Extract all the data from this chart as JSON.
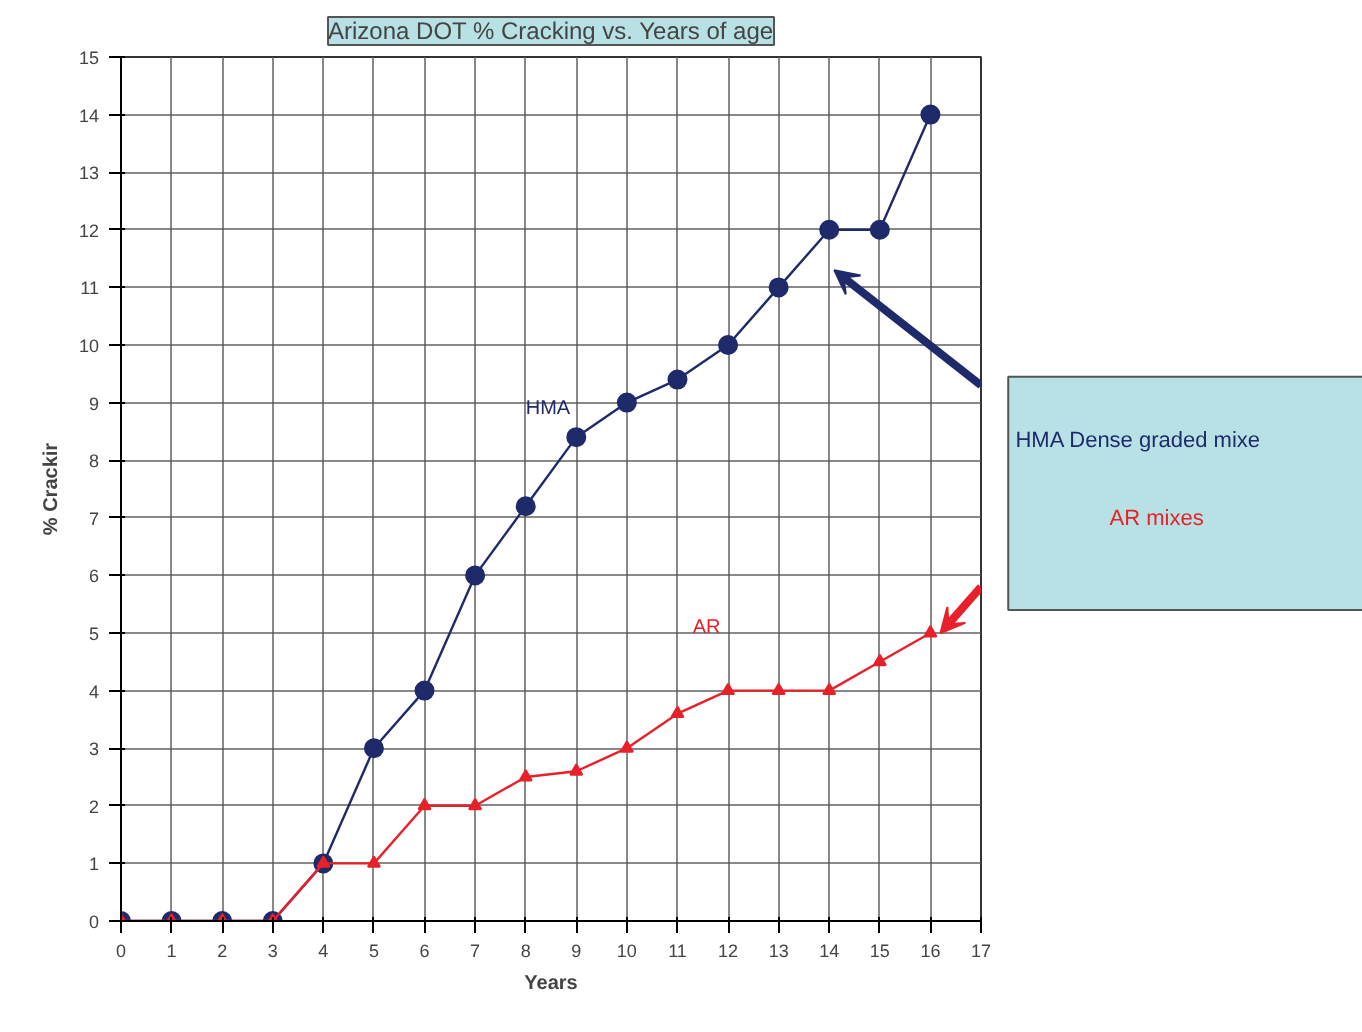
{
  "chart_data": {
    "type": "line",
    "title": "Arizona DOT % Cracking vs. Years of age",
    "xlabel": "Years",
    "ylabel": "% Crackir",
    "x": [
      0,
      1,
      2,
      3,
      4,
      5,
      6,
      7,
      8,
      9,
      10,
      11,
      12,
      13,
      14,
      15,
      16
    ],
    "series": [
      {
        "name": "HMA",
        "color": "#1f2a6b",
        "marker": "circle",
        "values": [
          0,
          0,
          0,
          0,
          1,
          3,
          4,
          6,
          7.2,
          8.4,
          9,
          9.4,
          10,
          11,
          12,
          12,
          14
        ]
      },
      {
        "name": "AR",
        "color": "#e8202a",
        "marker": "triangle",
        "values": [
          0,
          0,
          0,
          0,
          1,
          1,
          2,
          2,
          2.5,
          2.6,
          3,
          3.6,
          4,
          4,
          4,
          4.5,
          5
        ]
      }
    ],
    "xlim": [
      0,
      17
    ],
    "xticks": [
      0,
      1,
      2,
      3,
      4,
      5,
      6,
      7,
      8,
      9,
      10,
      11,
      12,
      13,
      14,
      15,
      16,
      17
    ],
    "ylim": [
      0,
      15
    ],
    "yticks": [
      0,
      1,
      2,
      3,
      4,
      5,
      6,
      7,
      8,
      9,
      10,
      11,
      12,
      13,
      14,
      15
    ],
    "grid": true,
    "line_style": "solid",
    "annotations": [
      "HMA Dense graded mixe",
      "AR mixes"
    ]
  }
}
